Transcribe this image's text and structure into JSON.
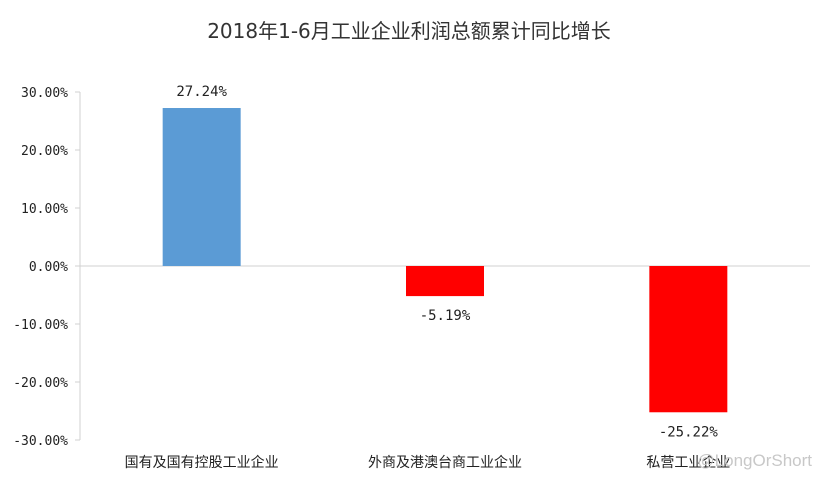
{
  "chart_data": {
    "type": "bar",
    "title": "2018年1-6月工业企业利润总额累计同比增长",
    "categories": [
      "国有及国有控股工业企业",
      "外商及港澳台商工业企业",
      "私营工业企业"
    ],
    "values": [
      27.24,
      -5.19,
      -25.22
    ],
    "data_labels": [
      "27.24%",
      "-5.19%",
      "-25.22%"
    ],
    "bar_colors": [
      "#5b9bd5",
      "#ff0000",
      "#ff0000"
    ],
    "ylim": [
      -30,
      30
    ],
    "yticks": [
      30,
      20,
      10,
      0,
      -10,
      -20,
      -30
    ],
    "ytick_labels": [
      "30.00%",
      "20.00%",
      "10.00%",
      "0.00%",
      "-10.00%",
      "-20.00%",
      "-30.00%"
    ],
    "grid": false,
    "legend": "none"
  },
  "watermark": "@LongOrShort"
}
